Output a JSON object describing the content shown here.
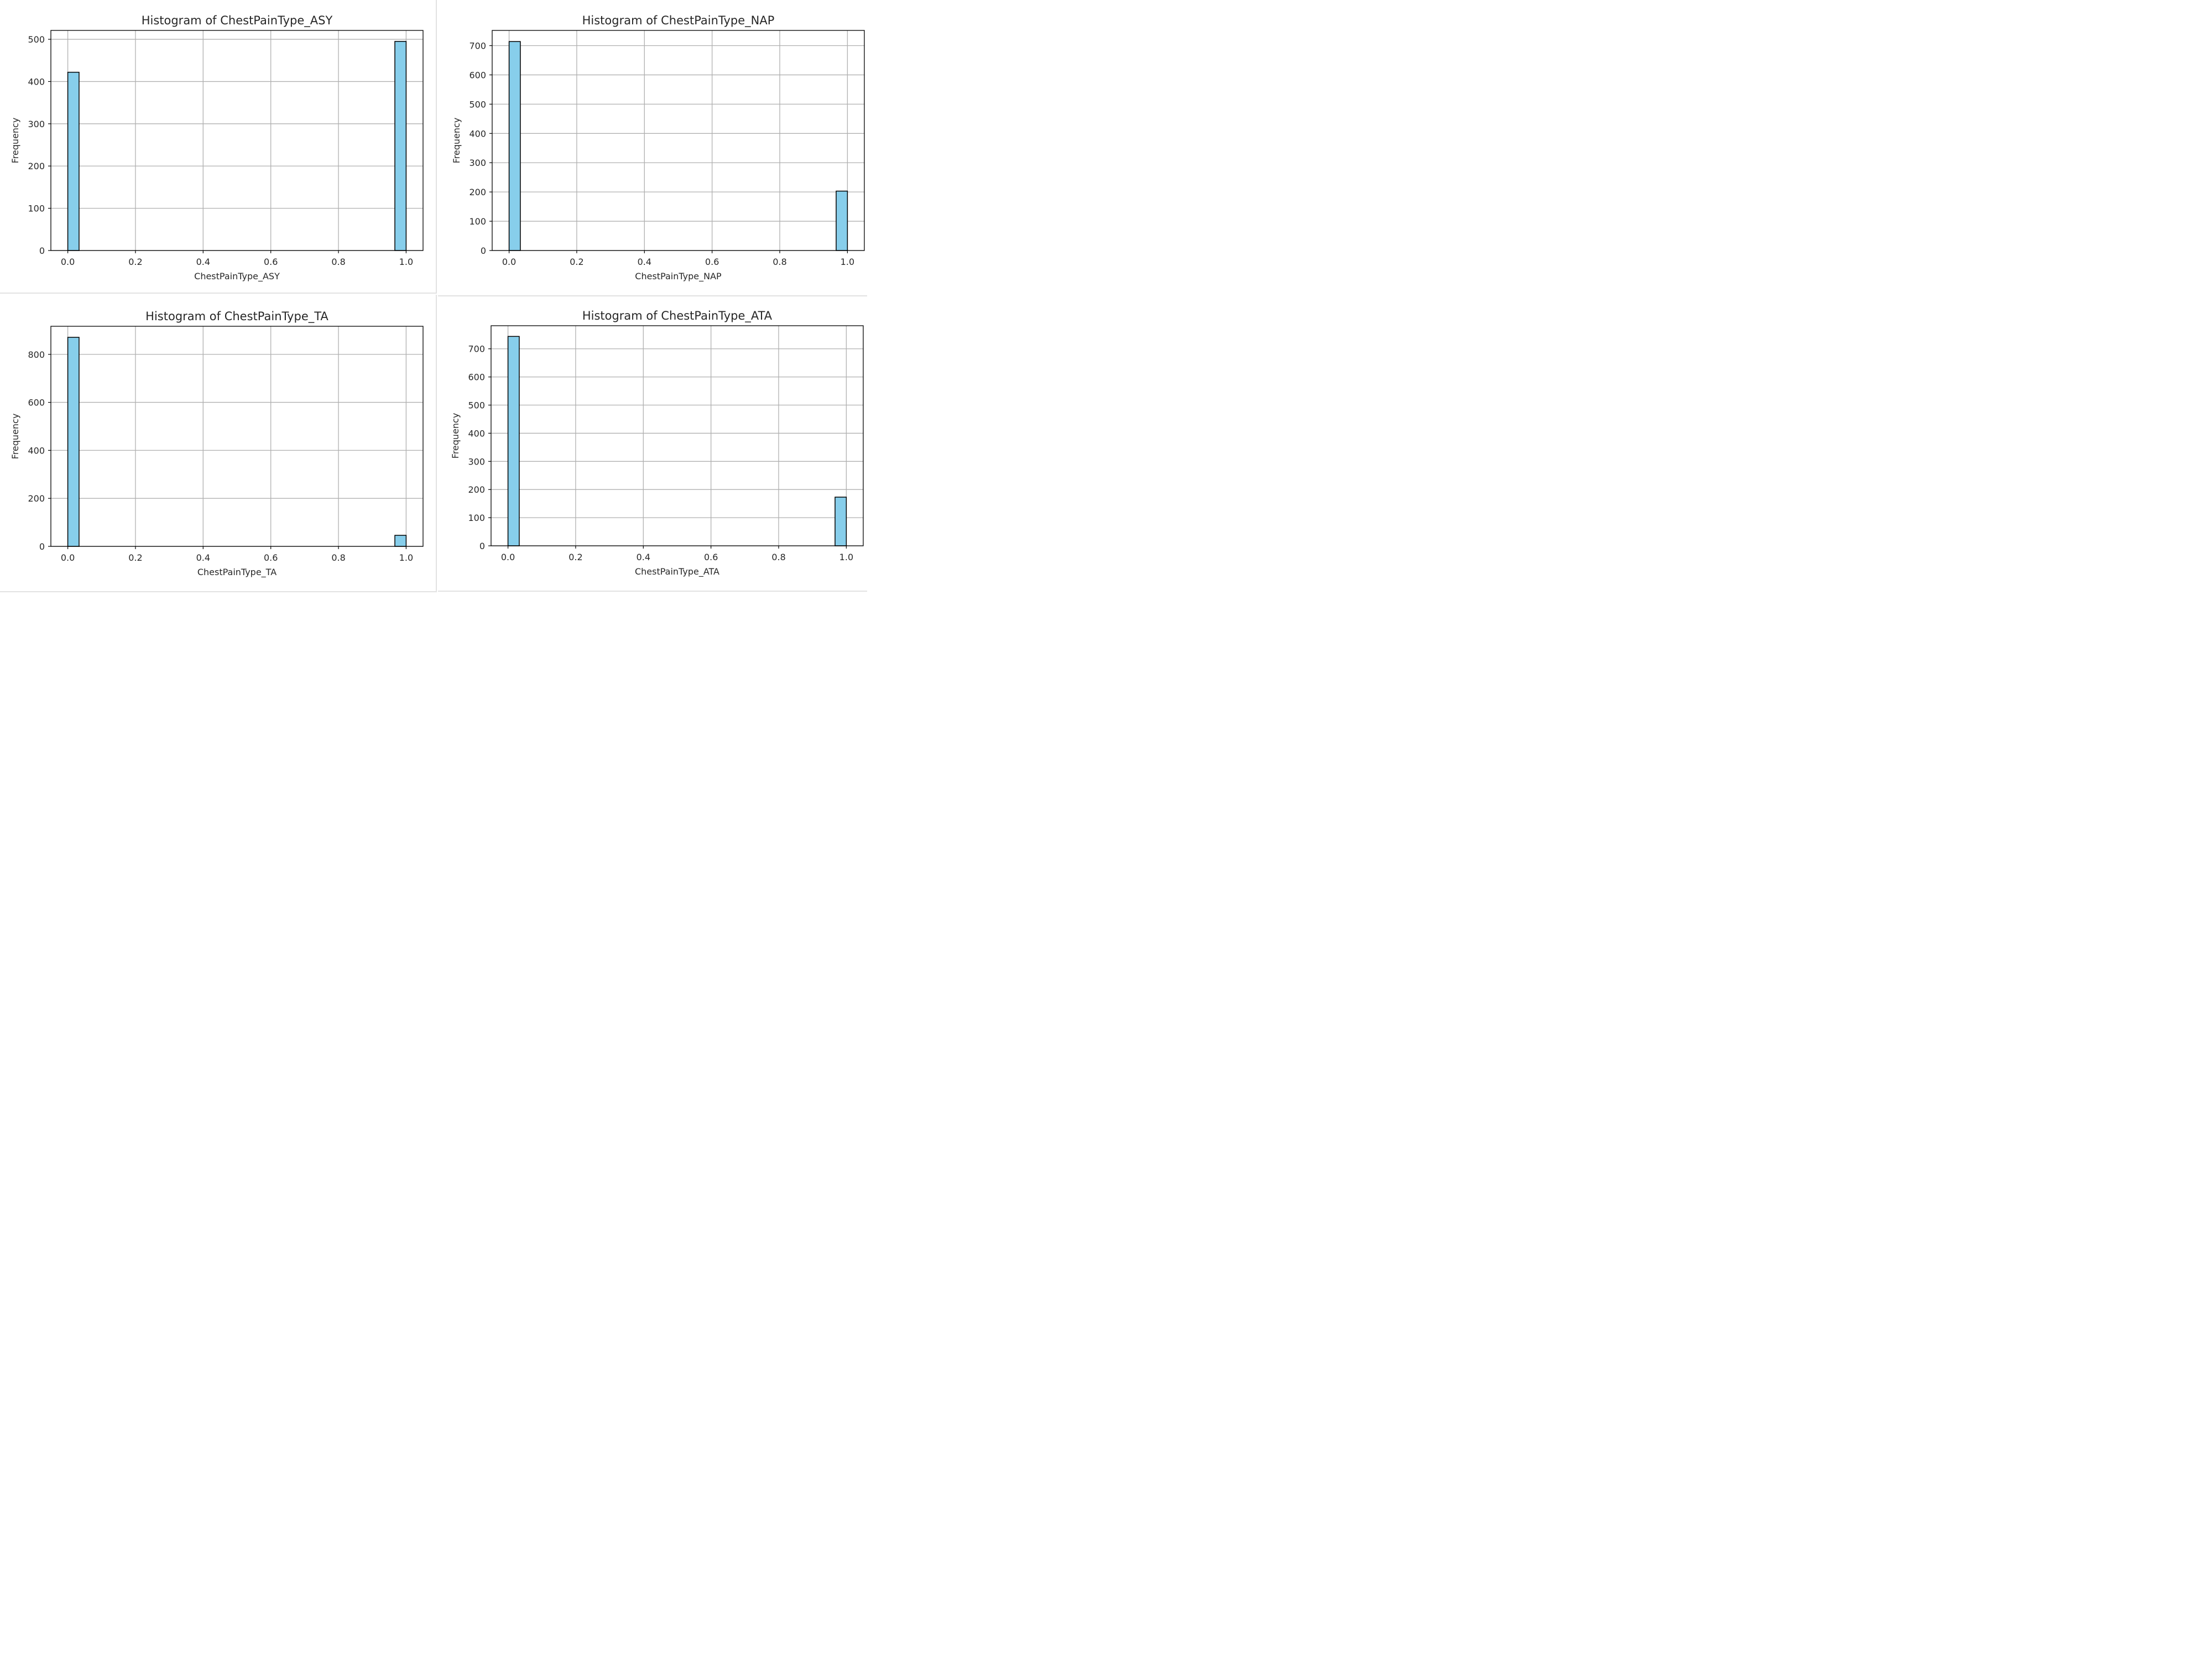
{
  "chart_data": [
    {
      "type": "bar",
      "title": "Histogram of ChestPainType_ASY",
      "xlabel": "ChestPainType_ASY",
      "ylabel": "Frequency",
      "xlim": [
        -0.05,
        1.05
      ],
      "ylim": [
        0,
        521
      ],
      "xticks": [
        "0.0",
        "0.2",
        "0.4",
        "0.6",
        "0.8",
        "1.0"
      ],
      "yticks": [
        0,
        100,
        200,
        300,
        400,
        500
      ],
      "grid": true,
      "bin_width": 0.0333,
      "bars": [
        {
          "x": 0.0,
          "value": 422
        },
        {
          "x": 0.9667,
          "value": 495
        }
      ]
    },
    {
      "type": "bar",
      "title": "Histogram of ChestPainType_NAP",
      "xlabel": "ChestPainType_NAP",
      "ylabel": "Frequency",
      "xlim": [
        -0.05,
        1.05
      ],
      "ylim": [
        0,
        752
      ],
      "xticks": [
        "0.0",
        "0.2",
        "0.4",
        "0.6",
        "0.8",
        "1.0"
      ],
      "yticks": [
        0,
        100,
        200,
        300,
        400,
        500,
        600,
        700
      ],
      "grid": true,
      "bin_width": 0.0333,
      "bars": [
        {
          "x": 0.0,
          "value": 714
        },
        {
          "x": 0.9667,
          "value": 203
        }
      ]
    },
    {
      "type": "bar",
      "title": "Histogram of ChestPainType_TA",
      "xlabel": "ChestPainType_TA",
      "ylabel": "Frequency",
      "xlim": [
        -0.05,
        1.05
      ],
      "ylim": [
        0,
        917
      ],
      "xticks": [
        "0.0",
        "0.2",
        "0.4",
        "0.6",
        "0.8",
        "1.0"
      ],
      "yticks": [
        0,
        200,
        400,
        600,
        800
      ],
      "grid": true,
      "bin_width": 0.0333,
      "bars": [
        {
          "x": 0.0,
          "value": 871
        },
        {
          "x": 0.9667,
          "value": 46
        }
      ]
    },
    {
      "type": "bar",
      "title": "Histogram of ChestPainType_ATA",
      "xlabel": "ChestPainType_ATA",
      "ylabel": "Frequency",
      "xlim": [
        -0.05,
        1.05
      ],
      "ylim": [
        0,
        782
      ],
      "xticks": [
        "0.0",
        "0.2",
        "0.4",
        "0.6",
        "0.8",
        "1.0"
      ],
      "yticks": [
        0,
        100,
        200,
        300,
        400,
        500,
        600,
        700
      ],
      "grid": true,
      "bin_width": 0.0333,
      "bars": [
        {
          "x": 0.0,
          "value": 744
        },
        {
          "x": 0.9667,
          "value": 173
        }
      ]
    }
  ],
  "colors": {
    "bar_fill": "#87ceeb",
    "bar_edge": "#000000",
    "grid": "#b0b0b0",
    "axes": "#000000"
  }
}
